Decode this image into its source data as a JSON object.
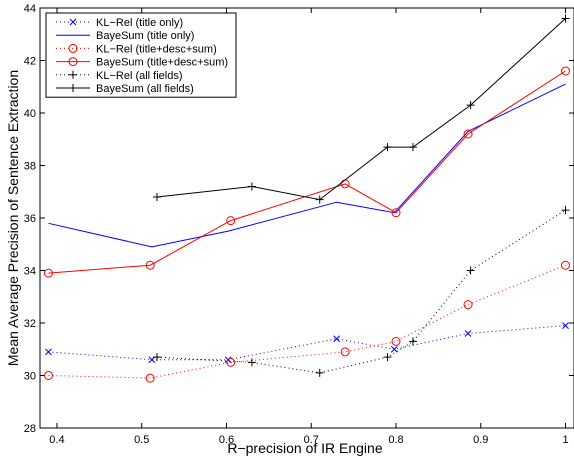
{
  "chart_data": {
    "type": "line",
    "xlabel": "R−precision of IR Engine",
    "ylabel": "Mean Average Precision of Sentence Extraction",
    "xlim": [
      0.38,
      1.01
    ],
    "ylim": [
      28,
      44
    ],
    "xticks": [
      0.4,
      0.5,
      0.6,
      0.7,
      0.8,
      0.9,
      1
    ],
    "xtick_labels": [
      "0.4",
      "0.5",
      "0.6",
      "0.7",
      "0.8",
      "0.9",
      "1"
    ],
    "yticks": [
      28,
      30,
      32,
      34,
      36,
      38,
      40,
      42,
      44
    ],
    "ytick_labels": [
      "28",
      "30",
      "32",
      "34",
      "36",
      "38",
      "40",
      "42",
      "44"
    ],
    "grid": false,
    "legend_position": "top-left",
    "series": [
      {
        "name": "KL−Rel (title only)",
        "color": "#0000ff",
        "line": "dotted",
        "marker": "x",
        "x": [
          0.39,
          0.512,
          0.602,
          0.73,
          0.798,
          0.885,
          1.0
        ],
        "y": [
          30.9,
          30.6,
          30.6,
          31.4,
          31.0,
          31.6,
          31.9
        ]
      },
      {
        "name": "BayeSum (title only)",
        "color": "#0000ff",
        "line": "solid",
        "marker": "none",
        "x": [
          0.39,
          0.512,
          0.602,
          0.73,
          0.798,
          0.885,
          1.0
        ],
        "y": [
          35.8,
          34.9,
          35.5,
          36.6,
          36.2,
          39.3,
          41.1
        ]
      },
      {
        "name": "KL−Rel (title+desc+sum)",
        "color": "#ff0000",
        "line": "dotted",
        "marker": "circle",
        "x": [
          0.39,
          0.51,
          0.605,
          0.74,
          0.8,
          0.885,
          1.0
        ],
        "y": [
          30.0,
          29.9,
          30.5,
          30.9,
          31.3,
          32.7,
          34.2
        ]
      },
      {
        "name": "BayeSum (title+desc+sum)",
        "color": "#ff0000",
        "line": "solid",
        "marker": "circle",
        "x": [
          0.39,
          0.51,
          0.605,
          0.74,
          0.8,
          0.885,
          1.0
        ],
        "y": [
          33.9,
          34.2,
          35.9,
          37.3,
          36.2,
          39.2,
          41.6
        ]
      },
      {
        "name": "KL−Rel (all fields)",
        "color": "#000000",
        "line": "dotted",
        "marker": "plus",
        "x": [
          0.518,
          0.63,
          0.71,
          0.79,
          0.82,
          0.888,
          1.0
        ],
        "y": [
          30.7,
          30.5,
          30.1,
          30.7,
          31.3,
          34.0,
          36.3
        ]
      },
      {
        "name": "BayeSum (all fields)",
        "color": "#000000",
        "line": "solid",
        "marker": "plus",
        "x": [
          0.518,
          0.63,
          0.71,
          0.79,
          0.82,
          0.888,
          1.0
        ],
        "y": [
          36.8,
          37.2,
          36.7,
          38.7,
          38.7,
          40.3,
          43.6
        ]
      }
    ]
  }
}
